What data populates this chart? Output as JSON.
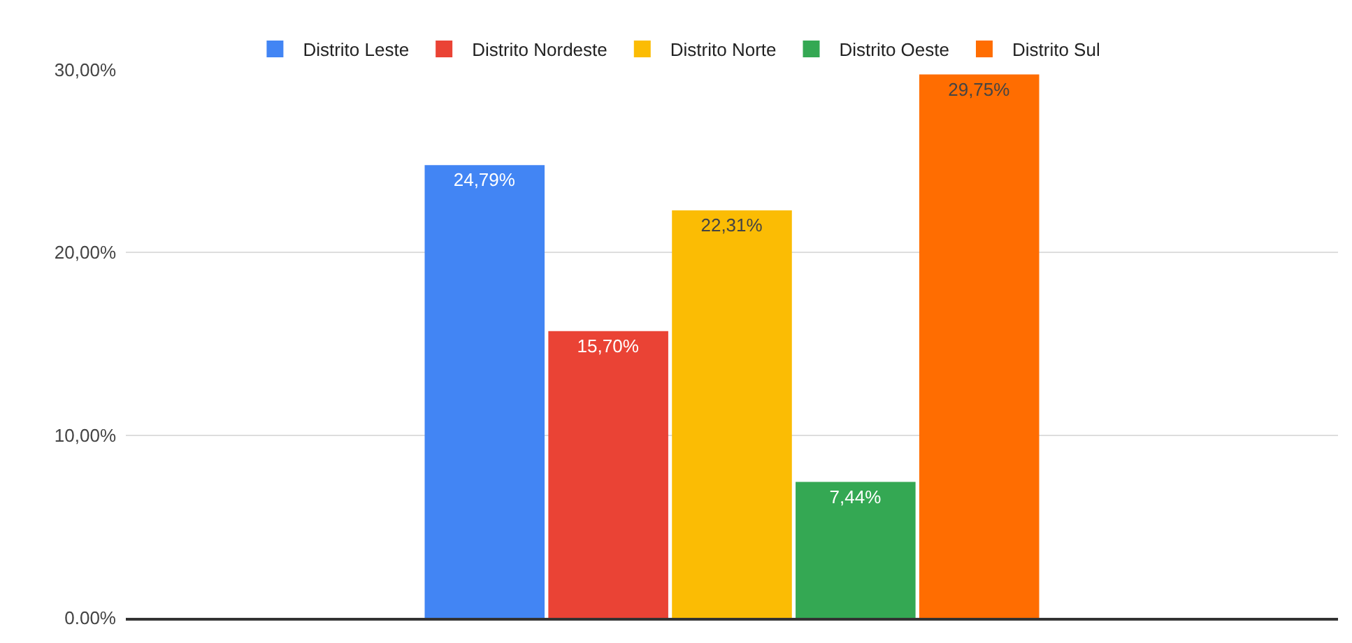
{
  "chart_data": {
    "type": "bar",
    "categories": [
      null
    ],
    "series": [
      {
        "name": "Distrito Leste",
        "color": "#4285f4",
        "values": [
          24.79
        ],
        "value_labels": [
          "24,79%"
        ]
      },
      {
        "name": "Distrito Nordeste",
        "color": "#ea4335",
        "values": [
          15.7
        ],
        "value_labels": [
          "15,70%"
        ]
      },
      {
        "name": "Distrito Norte",
        "color": "#fbbc04",
        "values": [
          22.31
        ],
        "value_labels": [
          "22,31%"
        ]
      },
      {
        "name": "Distrito Oeste",
        "color": "#34a853",
        "values": [
          7.44
        ],
        "value_labels": [
          "7,44%"
        ]
      },
      {
        "name": "Distrito Sul",
        "color": "#ff6d01",
        "values": [
          29.75
        ],
        "value_labels": [
          "29,75%"
        ]
      }
    ],
    "ylim": [
      0,
      30
    ],
    "yticks": [
      {
        "value": 0,
        "label": "0.00%"
      },
      {
        "value": 10,
        "label": "10,00%"
      },
      {
        "value": 20,
        "label": "20,00%"
      },
      {
        "value": 30,
        "label": "30,00%"
      }
    ],
    "grid": "y",
    "legend": "top"
  }
}
